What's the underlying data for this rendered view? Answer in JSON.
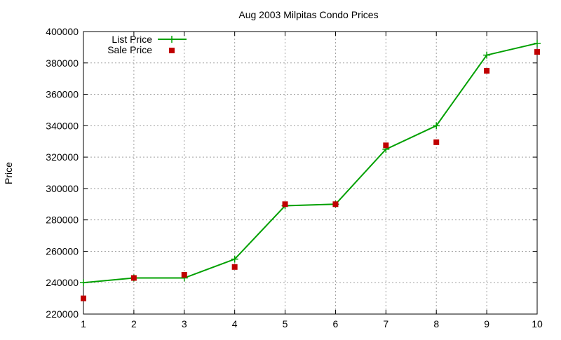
{
  "chart_data": {
    "type": "line",
    "title": "Aug 2003 Milpitas Condo Prices",
    "xlabel": "",
    "ylabel": "Price",
    "xlim": [
      1,
      10
    ],
    "ylim": [
      220000,
      400000
    ],
    "x_ticks": [
      1,
      2,
      3,
      4,
      5,
      6,
      7,
      8,
      9,
      10
    ],
    "x_tick_labels": [
      "1",
      "2",
      "3",
      "4",
      "5",
      "6",
      "7",
      "8",
      "9",
      "10"
    ],
    "y_ticks": [
      220000,
      240000,
      260000,
      280000,
      300000,
      320000,
      340000,
      360000,
      380000,
      400000
    ],
    "y_tick_labels": [
      "220000",
      "240000",
      "260000",
      "280000",
      "300000",
      "320000",
      "340000",
      "360000",
      "380000",
      "400000"
    ],
    "grid": true,
    "legend_position": "top-left",
    "x": [
      1,
      2,
      3,
      4,
      5,
      6,
      7,
      8,
      9,
      10
    ],
    "series": [
      {
        "name": "List Price",
        "style": "line+cross",
        "color": "#00a000",
        "values": [
          240000,
          243000,
          243000,
          255000,
          289000,
          290000,
          325000,
          340000,
          385000,
          392500
        ]
      },
      {
        "name": "Sale Price",
        "style": "square",
        "color": "#c00000",
        "values": [
          230000,
          243000,
          245000,
          250000,
          290000,
          290000,
          327500,
          329500,
          375000,
          387000
        ]
      }
    ]
  }
}
